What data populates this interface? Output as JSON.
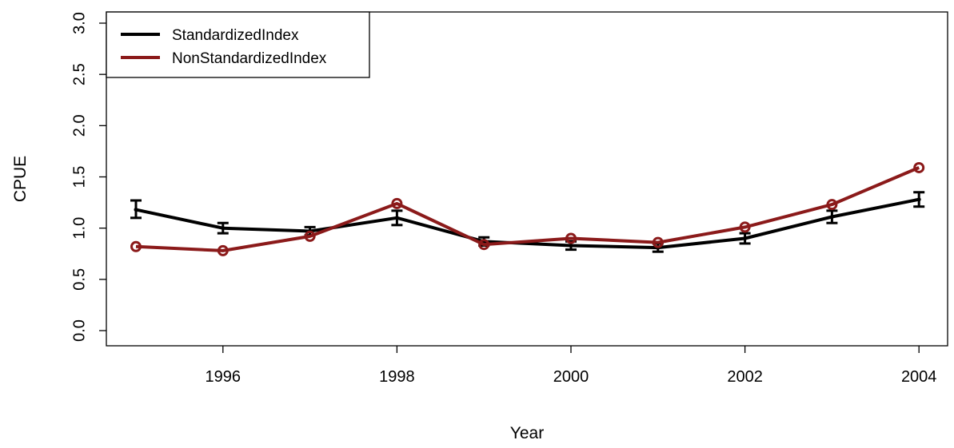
{
  "chart_data": {
    "type": "line",
    "title": "",
    "xlabel": "Year",
    "ylabel": "CPUE",
    "xlim": [
      1994.7,
      2004.4
    ],
    "ylim": [
      0.0,
      3.0
    ],
    "x_ticks": [
      1996,
      1998,
      2000,
      2002,
      2004
    ],
    "y_ticks": [
      0.0,
      0.5,
      1.0,
      1.5,
      2.0,
      2.5,
      3.0
    ],
    "x_tick_labels": [
      "1996",
      "1998",
      "2000",
      "2002",
      "2004"
    ],
    "y_tick_labels": [
      "0.0",
      "0.5",
      "1.0",
      "1.5",
      "2.0",
      "2.5",
      "3.0"
    ],
    "grid": false,
    "legend_position": "top-left",
    "x": [
      1995,
      1996,
      1997,
      1998,
      1999,
      2000,
      2001,
      2002,
      2003,
      2004
    ],
    "series": [
      {
        "name": "StandardizedIndex",
        "color": "#000000",
        "values": [
          1.18,
          1.0,
          0.97,
          1.1,
          0.87,
          0.83,
          0.81,
          0.9,
          1.11,
          1.28
        ],
        "error_low": [
          1.1,
          0.95,
          0.93,
          1.03,
          0.83,
          0.79,
          0.77,
          0.85,
          1.05,
          1.21
        ],
        "error_high": [
          1.27,
          1.05,
          1.01,
          1.17,
          0.91,
          0.87,
          0.85,
          0.95,
          1.17,
          1.35
        ]
      },
      {
        "name": "NonStandardizedIndex",
        "color": "#8b1a1a",
        "values": [
          0.82,
          0.78,
          0.92,
          1.24,
          0.84,
          0.9,
          0.86,
          1.01,
          1.23,
          1.59
        ]
      }
    ]
  }
}
